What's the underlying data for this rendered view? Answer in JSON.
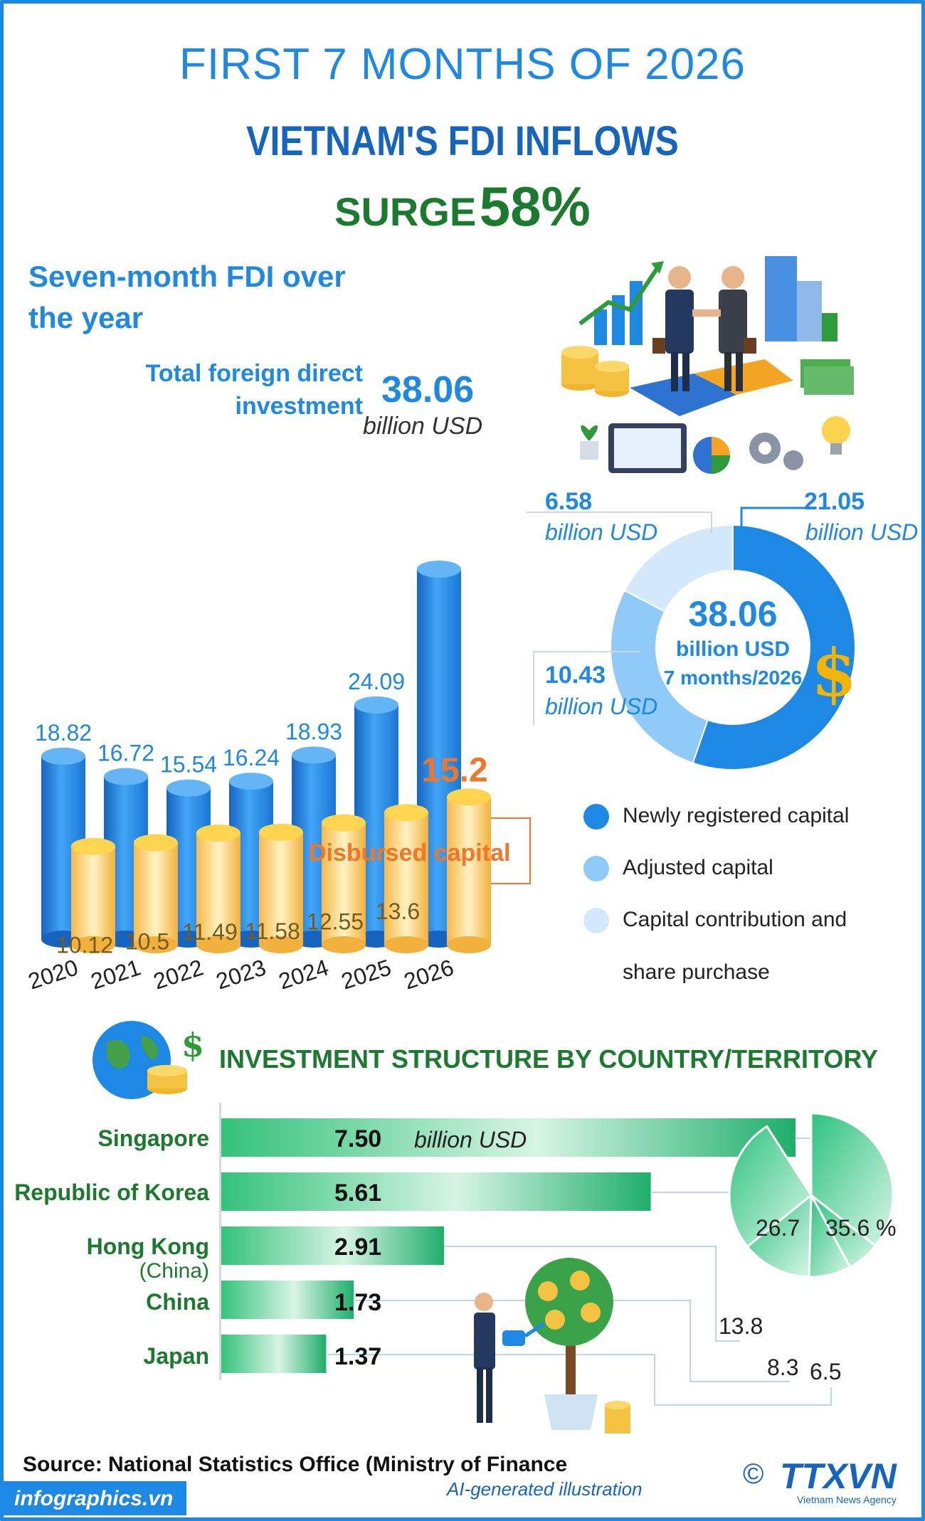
{
  "header": {
    "line1": "FIRST 7 MONTHS OF 2026",
    "line2": "VIETNAM'S FDI INFLOWS",
    "line3_word": "SURGE",
    "line3_value": "58%"
  },
  "section1": {
    "title": "Seven-month FDI over the year",
    "total_label": "Total foreign direct investment",
    "total_value": "38.06",
    "total_unit": "billion USD",
    "disbursed_label": "Disbursed capital"
  },
  "donut": {
    "center_value": "38.06",
    "center_unit": "billion USD",
    "center_period": "7 months/2026",
    "labels": [
      {
        "value": "21.05",
        "unit": "billion USD"
      },
      {
        "value": "10.43",
        "unit": "billion USD"
      },
      {
        "value": "6.58",
        "unit": "billion USD"
      }
    ],
    "legend": [
      "Newly registered capital",
      "Adjusted capital",
      "Capital contribution and",
      "share purchase"
    ],
    "colors": [
      "#1e88e5",
      "#90caf9",
      "#d4e9fb"
    ]
  },
  "section2": {
    "title": "INVESTMENT STRUCTURE BY COUNTRY/TERRITORY",
    "unit": "billion USD",
    "countries": [
      {
        "name": "Singapore",
        "sub": "",
        "value": "7.50"
      },
      {
        "name": "Republic of Korea",
        "sub": "",
        "value": "5.61"
      },
      {
        "name": "Hong Kong",
        "sub": "(China)",
        "value": "2.91"
      },
      {
        "name": "China",
        "sub": "",
        "value": "1.73"
      },
      {
        "name": "Japan",
        "sub": "",
        "value": "1.37"
      }
    ],
    "pie_labels": [
      "35.6 %",
      "26.7",
      "13.8",
      "8.3",
      "6.5"
    ]
  },
  "footer": {
    "source": "Source: National Statistics Office (Ministry of Finance",
    "ai_note": "AI-generated illustration",
    "site": "infographics.vn",
    "copyright": "©",
    "brand": "TTXVN",
    "brand_sub": "Vietnam News Agency"
  },
  "colors": {
    "accent_blue": "#1e88e5",
    "accent_green": "#1b7a2e",
    "disbursed_orange": "#f0762b"
  },
  "chart_data": [
    {
      "type": "bar",
      "categories": [
        "2020",
        "2021",
        "2022",
        "2023",
        "2024",
        "2025",
        "2026"
      ],
      "series": [
        {
          "name": "Total foreign direct investment",
          "values": [
            18.82,
            16.72,
            15.54,
            16.24,
            18.93,
            24.09,
            38.06
          ]
        },
        {
          "name": "Disbursed capital",
          "values": [
            10.12,
            10.5,
            11.49,
            11.58,
            12.55,
            13.6,
            15.2
          ]
        }
      ],
      "title": "Seven-month FDI over the year",
      "ylabel": "billion USD"
    },
    {
      "type": "pie",
      "categories": [
        "Newly registered capital",
        "Adjusted capital",
        "Capital contribution and share purchase"
      ],
      "values": [
        21.05,
        10.43,
        6.58
      ],
      "total": 38.06
    },
    {
      "type": "bar",
      "orientation": "horizontal",
      "categories": [
        "Singapore",
        "Republic of Korea",
        "Hong Kong (China)",
        "China",
        "Japan"
      ],
      "values": [
        7.5,
        5.61,
        2.91,
        1.73,
        1.37
      ],
      "title": "INVESTMENT STRUCTURE BY COUNTRY/TERRITORY",
      "unit": "billion USD"
    },
    {
      "type": "pie",
      "categories": [
        "Singapore",
        "Republic of Korea",
        "Hong Kong (China)",
        "China",
        "Japan"
      ],
      "values": [
        35.6,
        26.7,
        13.8,
        8.3,
        6.5
      ],
      "unit": "%"
    }
  ]
}
